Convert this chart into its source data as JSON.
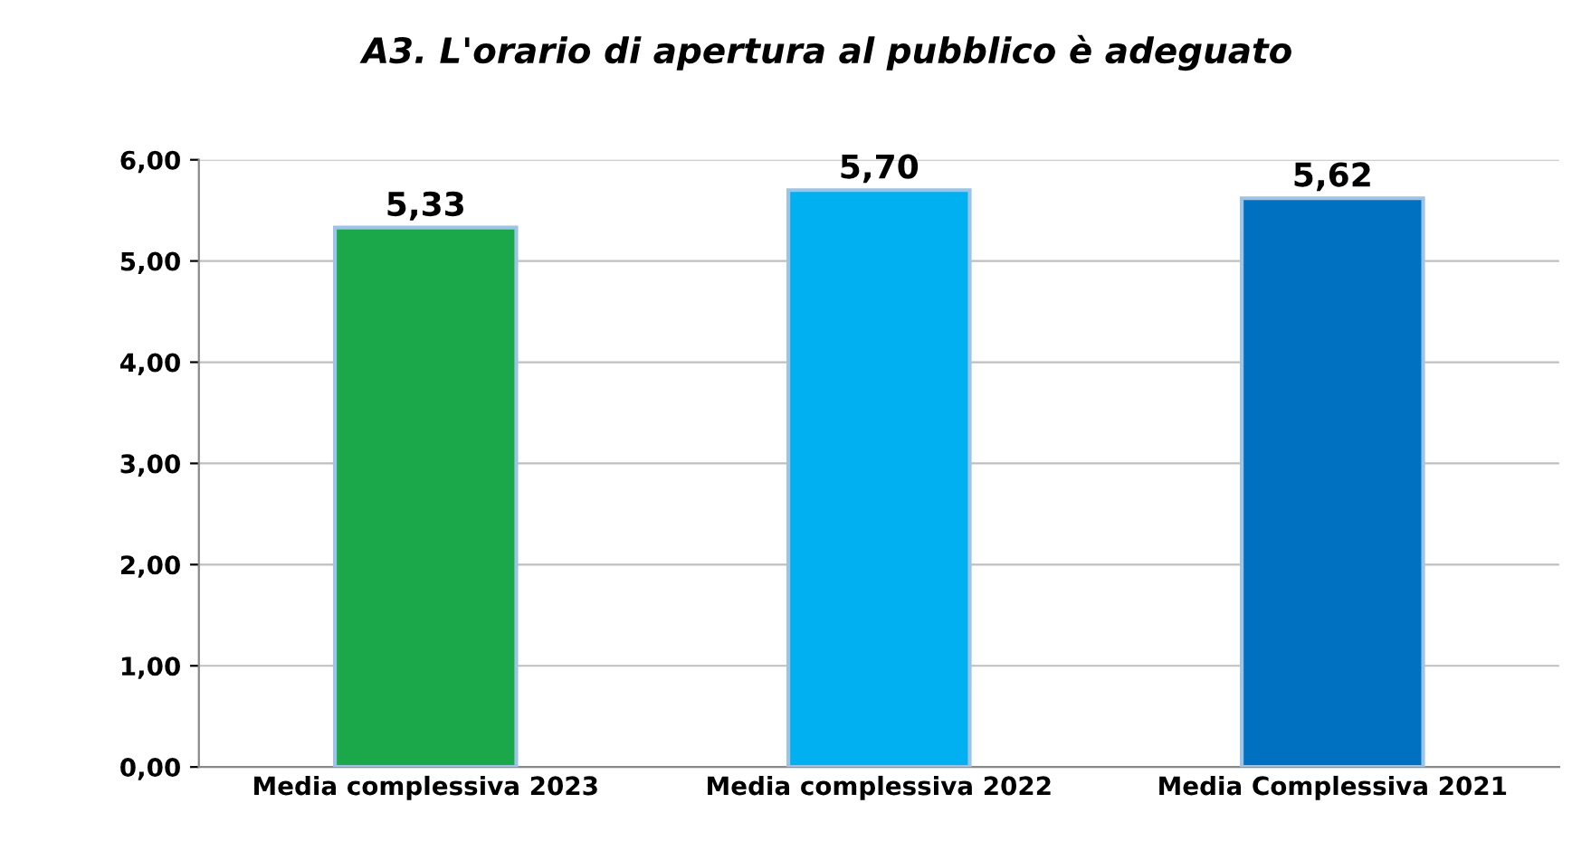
{
  "chart_data": {
    "type": "bar",
    "title": "A3. L'orario di apertura al pubblico è adeguato",
    "categories": [
      "Media complessiva 2023",
      "Media complessiva 2022",
      "Media Complessiva 2021"
    ],
    "values": [
      5.33,
      5.7,
      5.62
    ],
    "colors": [
      "#1aa84a",
      "#00b0f0",
      "#0070c0"
    ],
    "value_labels": [
      "5,33",
      "5,70",
      "5,62"
    ],
    "ylim": [
      0,
      6
    ],
    "yticks": [
      {
        "value": 0,
        "label": "0,00"
      },
      {
        "value": 1,
        "label": "1,00"
      },
      {
        "value": 2,
        "label": "2,00"
      },
      {
        "value": 3,
        "label": "3,00"
      },
      {
        "value": 4,
        "label": "4,00"
      },
      {
        "value": 5,
        "label": "5,00"
      },
      {
        "value": 6,
        "label": "6,00"
      }
    ],
    "grid": "y"
  }
}
